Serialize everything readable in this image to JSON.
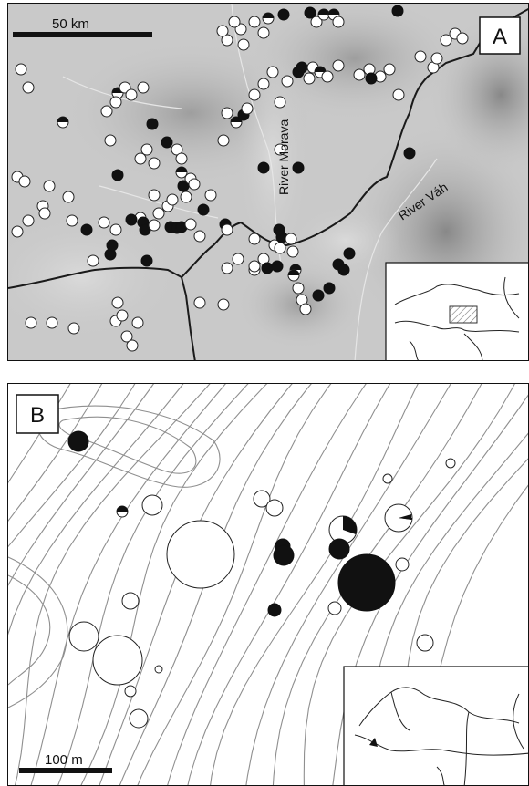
{
  "panel_a": {
    "label": "A",
    "scale_label": "50 km",
    "rivers": [
      "River Morava",
      "River Váh"
    ]
  },
  "panel_b": {
    "label": "B",
    "scale_label": "100 m"
  },
  "colors": {
    "site_filled": "#111111",
    "site_open": "#ffffff",
    "contour": "#8a8a8a",
    "border": "#1a1a1a",
    "relief_base": "#c9c9c9"
  }
}
